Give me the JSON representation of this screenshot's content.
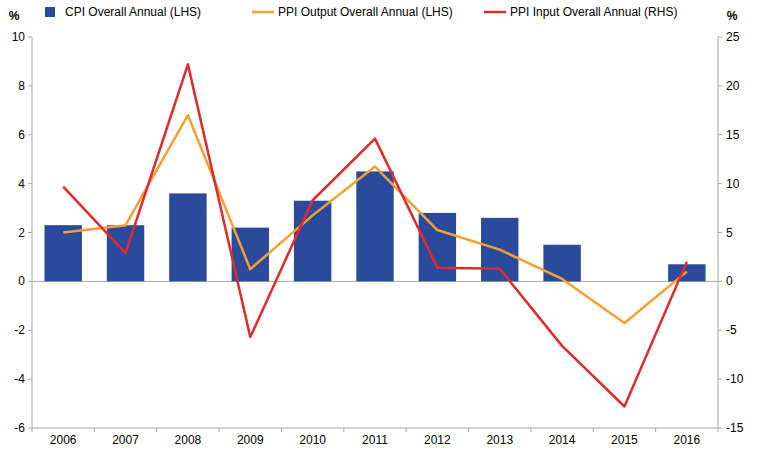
{
  "chart_data": {
    "type": "bar",
    "y_label": "%",
    "y2_label": "%",
    "categories": [
      "2006",
      "2007",
      "2008",
      "2009",
      "2010",
      "2011",
      "2012",
      "2013",
      "2014",
      "2015",
      "2016"
    ],
    "series": [
      {
        "name": "CPI Overall Annual (LHS)",
        "type": "bar",
        "color": "#2b4a9c",
        "values": [
          2.3,
          2.3,
          3.6,
          2.2,
          3.3,
          4.5,
          2.8,
          2.6,
          1.5,
          0,
          0.7
        ]
      },
      {
        "name": "PPI Output Overall Annual (LHS)",
        "type": "line",
        "color": "#f5a032",
        "values": [
          2.0,
          2.3,
          6.8,
          0.5,
          2.7,
          4.7,
          2.1,
          1.3,
          0.1,
          -1.7,
          0.4
        ]
      },
      {
        "name": "PPI Input Overall Annual (RHS)",
        "type": "line",
        "color": "#e02b2b",
        "axis": "y2",
        "values": [
          9.7,
          2.9,
          22.2,
          -5.7,
          8.3,
          14.6,
          1.4,
          1.3,
          -6.6,
          -12.8,
          2.0
        ]
      }
    ],
    "ylim": [
      -6,
      10
    ],
    "yticks": [
      -6,
      -4,
      -2,
      0,
      2,
      4,
      6,
      8,
      10
    ],
    "y2lim": [
      -15,
      25
    ],
    "y2ticks": [
      -15,
      -10,
      -5,
      0,
      5,
      10,
      15,
      20,
      25
    ],
    "grid": false,
    "legend": "top"
  }
}
